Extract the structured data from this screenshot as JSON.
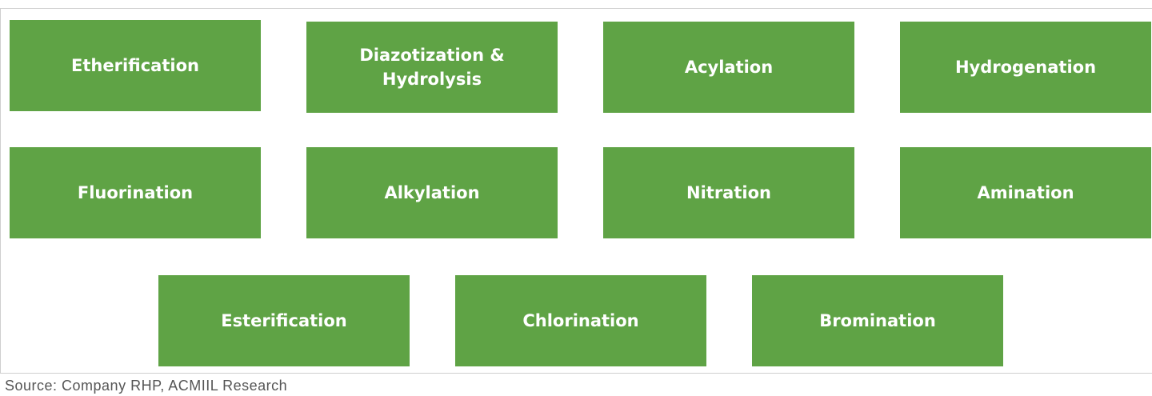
{
  "boxes": [
    "Etherification",
    "Diazotization &\nHydrolysis",
    "Acylation",
    "Hydrogenation",
    "Fluorination",
    "Alkylation",
    "Nitration",
    "Amination",
    "Esterification",
    "Chlorination",
    "Bromination"
  ],
  "source": "Source: Company RHP, ACMIIL Research"
}
